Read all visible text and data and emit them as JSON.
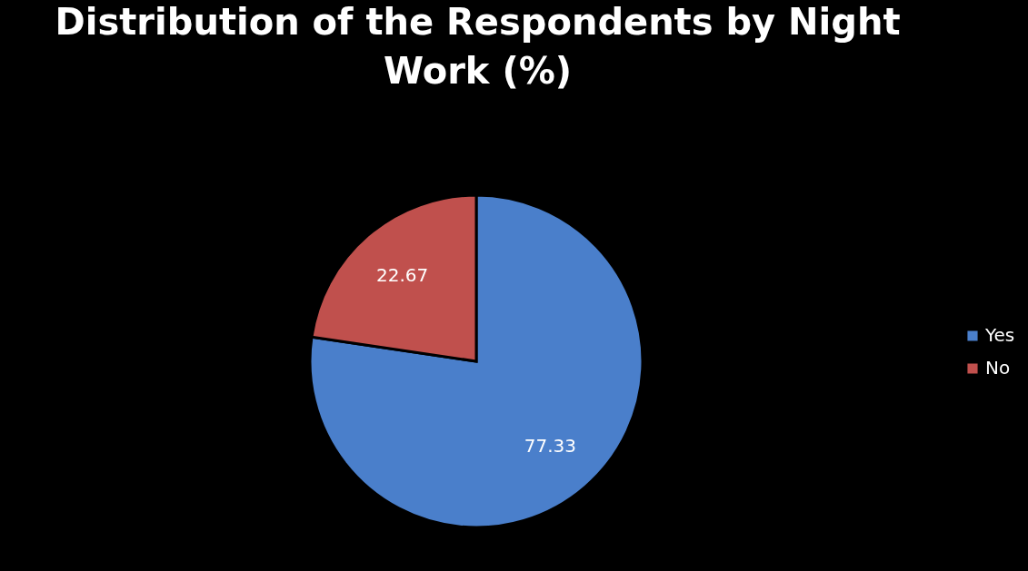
{
  "chart_data": {
    "type": "pie",
    "title": "Distribution of the Respondents by Night Work  (%)",
    "categories": [
      "Yes",
      "No"
    ],
    "values": [
      77.33,
      22.67
    ],
    "colors": [
      "#4a7fcb",
      "#c0504d"
    ],
    "data_labels": true,
    "legend": "right"
  }
}
